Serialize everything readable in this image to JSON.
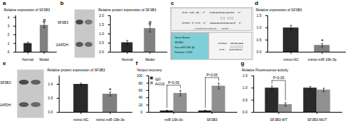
{
  "chart_data": [
    {
      "type": "bar",
      "title": "a",
      "categories": [
        "Normal",
        "Model"
      ],
      "values": [
        1.0,
        3.1
      ],
      "errors": [
        0.15,
        0.28
      ],
      "colors": [
        "#2a2a2a",
        "#808080"
      ],
      "ylabel": "Relative expression of SF3B3",
      "ylim": [
        0,
        4.2
      ],
      "yticks": [
        0,
        1,
        2,
        3,
        4
      ],
      "annotations": [
        {
          "text": "#",
          "category": "Model"
        }
      ]
    },
    {
      "type": "blot",
      "title": "b",
      "color": "#c8c8c8",
      "series": [
        {
          "name": "SF3B3",
          "colors": [
            "#484848",
            "#787878"
          ]
        },
        {
          "name": "GAPDH",
          "colors": [
            "#585858",
            "#686868"
          ]
        }
      ]
    },
    {
      "type": "bar",
      "categories": [
        "Normal",
        "Model"
      ],
      "values": [
        0.52,
        1.3
      ],
      "errors": [
        0.12,
        0.2
      ],
      "colors": [
        "#2a2a2a",
        "#808080"
      ],
      "ylabel": "Relative protein expression of SF3B3",
      "ylim": [
        0,
        2.0
      ],
      "yticks": [
        {
          "value": 0,
          "label": "0.0"
        },
        0.5,
        {
          "value": 1,
          "label": "1.0"
        },
        1.5,
        {
          "value": 2,
          "label": "2.0"
        }
      ],
      "annotations": [
        {
          "text": "#",
          "category": "Model"
        }
      ]
    },
    {
      "type": "text",
      "title": "c",
      "color": "#ebebeb",
      "colors": [
        "#f0f0f0",
        "#7ecfd8",
        "#f5f5f5"
      ],
      "annotations": [
        [
          "miR-19b-3p: 3'  UUGUACGUACAAUGU  5'",
          "                  ||| ||||",
          "SF3B3 3'UTR: 5'  AGAUAUGUGUACACG  3'",
          "...UUAGCAUUUGUAC...AUGC..."
        ],
        [
          "Gene Name:",
          "SF3B3",
          "hsa-miR-19b-3p",
          "Position: 1234"
        ],
        [
          "miRNA: UGUGCAAA\n       ||||||||\nUTR:  ACACGUUU"
        ]
      ]
    },
    {
      "type": "bar",
      "title": "d",
      "categories": [
        "mimic-NC",
        "mimic-miR-19b-3p"
      ],
      "values": [
        1.0,
        0.28
      ],
      "errors": [
        0.1,
        0.07
      ],
      "colors": [
        "#2a2a2a",
        "#808080"
      ],
      "ylabel": "Relative expression of SF3B3",
      "ylim": [
        0,
        1.5
      ],
      "yticks": [
        {
          "value": 0,
          "label": "0.0"
        },
        0.5,
        {
          "value": 1,
          "label": "1.0"
        },
        1.5
      ],
      "annotations": [
        {
          "text": "*",
          "category": "mimic-miR-19b-3p"
        }
      ]
    },
    {
      "type": "blot",
      "title": "e",
      "color": "#c8c8c8",
      "series": [
        {
          "name": "SF3B3",
          "colors": [
            "#484848",
            "#606060"
          ]
        },
        {
          "name": "GAPDH",
          "colors": [
            "#585858",
            "#686868"
          ]
        }
      ]
    },
    {
      "type": "bar",
      "categories": [
        "mimic-NC",
        "mimic-miR-19b-3p"
      ],
      "values": [
        1.0,
        0.65
      ],
      "errors": [
        0.04,
        0.07
      ],
      "colors": [
        "#2a2a2a",
        "#808080"
      ],
      "ylabel": "Relative protein expression of SF3B3",
      "ylim": [
        0,
        1.3
      ],
      "yticks": [
        {
          "value": 0,
          "label": "0.0"
        },
        0.5,
        {
          "value": 1,
          "label": "1.0"
        }
      ],
      "annotations": [
        {
          "text": "*",
          "category": "mimic-miR-19b-3p"
        }
      ]
    },
    {
      "type": "bar",
      "title": "f",
      "categories": [
        "miR-19b-3p",
        "SF3B3"
      ],
      "series": [
        {
          "name": "IgG",
          "color": "#2a2a2a",
          "values": [
            4,
            4
          ],
          "errors": [
            1.5,
            1.5
          ]
        },
        {
          "name": "AGO2",
          "color": "#909090",
          "values": [
            52,
            72
          ],
          "errors": [
            7,
            8
          ]
        }
      ],
      "ylabel": "%input recovery",
      "ylim": [
        0,
        100
      ],
      "yticks": [
        0,
        20,
        40,
        60,
        80,
        100
      ],
      "legend": "upper left",
      "annotations": [
        {
          "text": "P<0.05",
          "category": "miR-19b-3p"
        },
        {
          "text": "P<0.05",
          "category": "SF3B3"
        }
      ]
    },
    {
      "type": "bar",
      "title": "g",
      "categories": [
        "SF3B3-WT",
        "SF3B3-MUT"
      ],
      "series": [
        {
          "color": "#2a2a2a",
          "values": [
            1.0,
            1.0
          ],
          "errors": [
            0.08,
            0.06
          ]
        },
        {
          "color": "#909090",
          "values": [
            0.32,
            0.92
          ],
          "errors": [
            0.07,
            0.07
          ]
        }
      ],
      "ylabel": "Relative Fluorescence activity",
      "ylim": [
        0,
        1.5
      ],
      "yticks": [
        {
          "value": 0,
          "label": "0.0"
        },
        0.5,
        {
          "value": 1,
          "label": "1.0"
        },
        1.5
      ],
      "annotations": [
        {
          "text": "P<0.05",
          "category": "SF3B3-WT"
        }
      ]
    }
  ]
}
